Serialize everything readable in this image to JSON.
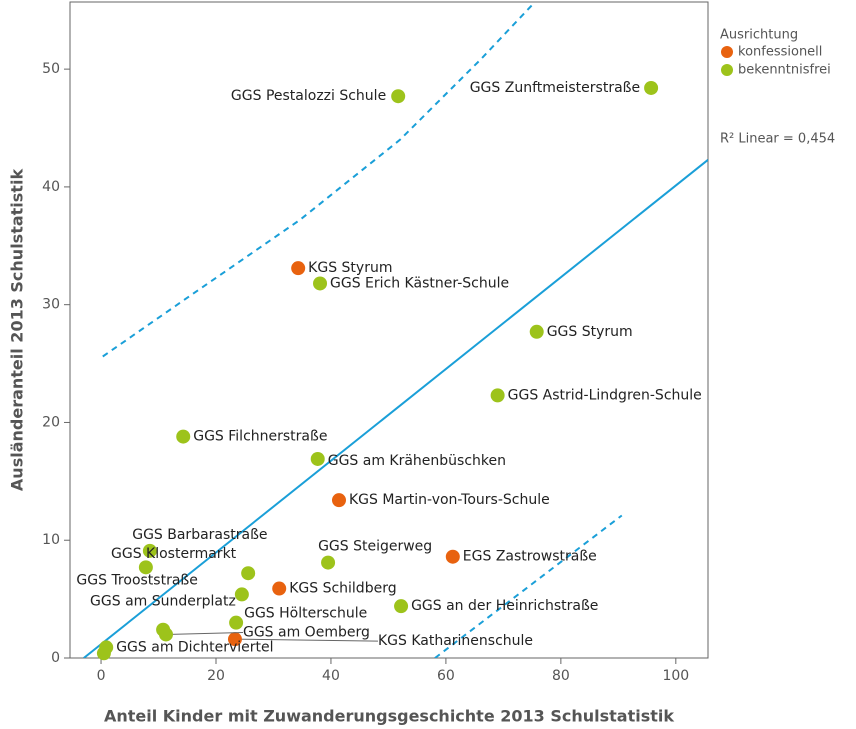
{
  "chart_data": {
    "type": "scatter",
    "xlabel": "Anteil Kinder mit Zuwanderungsgeschichte 2013 Schulstatistik",
    "ylabel": "Ausländeranteil 2013 Schulstatistik",
    "xlim": [
      -5.4,
      105.6
    ],
    "ylim": [
      0,
      55.7
    ],
    "xticks": [
      0,
      20,
      40,
      60,
      80,
      100
    ],
    "yticks": [
      0,
      10,
      20,
      30,
      40,
      50
    ],
    "legend_title": "Ausrichtung",
    "annotation": "R² Linear = 0,454",
    "series": [
      {
        "name": "konfessionell",
        "color": "#e8620f",
        "categories": [
          "KGS Styrum",
          "KGS Martin-von-Tours-Schule",
          "EGS Zastrowstraße",
          "KGS Schildberg",
          "KGS Katharinenschule"
        ],
        "x": [
          34.3,
          41.4,
          61.2,
          31.0,
          23.3
        ],
        "values": [
          33.1,
          13.4,
          8.6,
          5.9,
          1.6
        ]
      },
      {
        "name": "bekenntnisfrei",
        "color": "#9dc31b",
        "categories": [
          "GGS Pestalozzi Schule",
          "GGS Zunftmeisterstraße",
          "GGS Erich Kästner-Schule",
          "GGS Styrum",
          "GGS Astrid-Lindgren-Schule",
          "GGS Filchnerstraße",
          "GGS am Krähenbüschken",
          "GGS Barbarastraße",
          "GGS Steigerweg",
          "GGS Klostermarkt",
          "GGS Trooststraße",
          "GGS am Sunderplatz",
          "GGS an der Heinrichstraße",
          "GGS Hölterschule",
          "GGS am Oemberg",
          null,
          "GGS am Dichterviertel",
          null
        ],
        "x": [
          51.7,
          95.7,
          38.1,
          75.8,
          69.0,
          14.3,
          37.7,
          8.5,
          39.5,
          25.6,
          7.8,
          24.5,
          52.2,
          23.5,
          11.3,
          10.8,
          0.9,
          0.5
        ],
        "values": [
          47.7,
          48.4,
          31.8,
          27.7,
          22.3,
          18.8,
          16.9,
          9.1,
          8.1,
          7.2,
          7.7,
          5.4,
          4.4,
          3.0,
          2.0,
          2.4,
          0.9,
          0.4
        ]
      }
    ],
    "line_color": "#1a9fd8",
    "fit_line": {
      "x": [
        -3.0,
        105.6
      ],
      "values": [
        0,
        42.3
      ]
    },
    "upper_band": {
      "x": [
        0.3,
        17.1,
        34.6,
        52.0,
        66.0,
        75.5
      ],
      "values": [
        25.6,
        31.3,
        37.2,
        44.0,
        50.8,
        55.7
      ]
    },
    "lower_band": {
      "x": [
        58.1,
        90.6
      ],
      "values": [
        0,
        12.1
      ]
    }
  }
}
